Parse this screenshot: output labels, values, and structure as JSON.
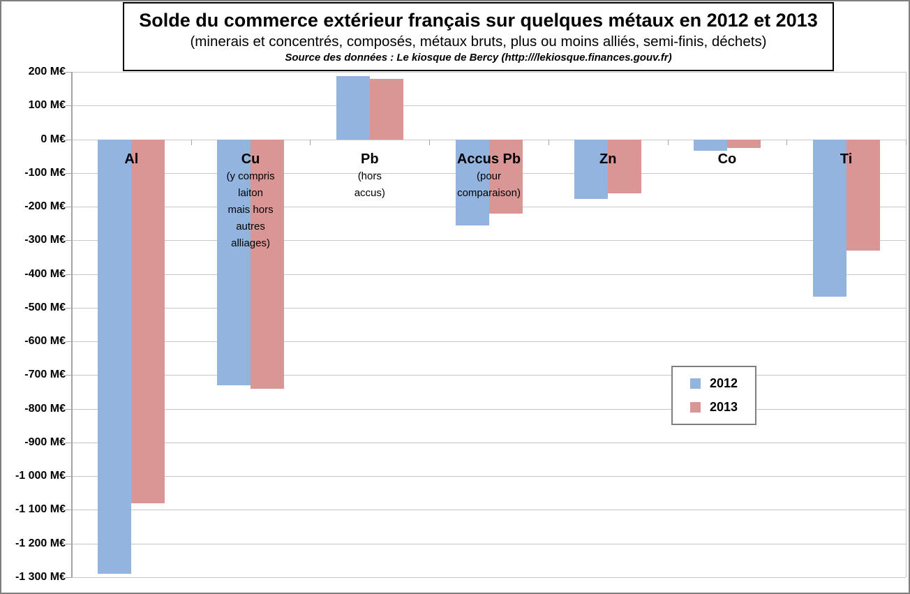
{
  "header": {
    "title": "Solde du commerce extérieur français sur quelques métaux en 2012 et 2013",
    "subtitle": "(minerais et concentrés, composés, métaux bruts, plus ou moins alliés, semi-finis, déchets)",
    "source": "Source des données : Le kiosque de Bercy (http:///lekiosque.finances.gouv.fr)"
  },
  "legend": {
    "position": "middle-right",
    "items": [
      {
        "label": "2012",
        "color": "#92b4df"
      },
      {
        "label": "2013",
        "color": "#d99694"
      }
    ]
  },
  "chart_data": {
    "type": "bar",
    "title": "Solde du commerce extérieur français sur quelques métaux en 2012 et 2013",
    "xlabel": "",
    "ylabel": "M€",
    "ylim": [
      -1300,
      200
    ],
    "ytick_step": 100,
    "grid": true,
    "categories": [
      {
        "label": "Al",
        "sublabel_lines": []
      },
      {
        "label": "Cu",
        "sublabel_lines": [
          "(y compris",
          "laiton",
          "mais hors",
          "autres",
          "alliages)"
        ]
      },
      {
        "label": "Pb",
        "sublabel_lines": [
          "(hors",
          "accus)"
        ]
      },
      {
        "label": "Accus Pb",
        "sublabel_lines": [
          "(pour",
          "comparaison)"
        ]
      },
      {
        "label": "Zn",
        "sublabel_lines": []
      },
      {
        "label": "Co",
        "sublabel_lines": []
      },
      {
        "label": "Ti",
        "sublabel_lines": []
      }
    ],
    "series": [
      {
        "name": "2012",
        "color": "#92b4df",
        "values": [
          -1290,
          -730,
          188,
          -255,
          -178,
          -35,
          -467
        ]
      },
      {
        "name": "2013",
        "color": "#d99694",
        "values": [
          -1080,
          -740,
          180,
          -220,
          -160,
          -25,
          -330
        ]
      }
    ],
    "yticks": [
      {
        "value": 200,
        "label": "200 M€"
      },
      {
        "value": 100,
        "label": "100 M€"
      },
      {
        "value": 0,
        "label": "0 M€"
      },
      {
        "value": -100,
        "label": "-100 M€"
      },
      {
        "value": -200,
        "label": "-200 M€"
      },
      {
        "value": -300,
        "label": "-300 M€"
      },
      {
        "value": -400,
        "label": "-400 M€"
      },
      {
        "value": -500,
        "label": "-500 M€"
      },
      {
        "value": -600,
        "label": "-600 M€"
      },
      {
        "value": -700,
        "label": "-700 M€"
      },
      {
        "value": -800,
        "label": "-800 M€"
      },
      {
        "value": -900,
        "label": "-900 M€"
      },
      {
        "value": -1000,
        "label": "-1 000 M€"
      },
      {
        "value": -1100,
        "label": "-1 100 M€"
      },
      {
        "value": -1200,
        "label": "-1 200 M€"
      },
      {
        "value": -1300,
        "label": "-1 300 M€"
      }
    ]
  }
}
